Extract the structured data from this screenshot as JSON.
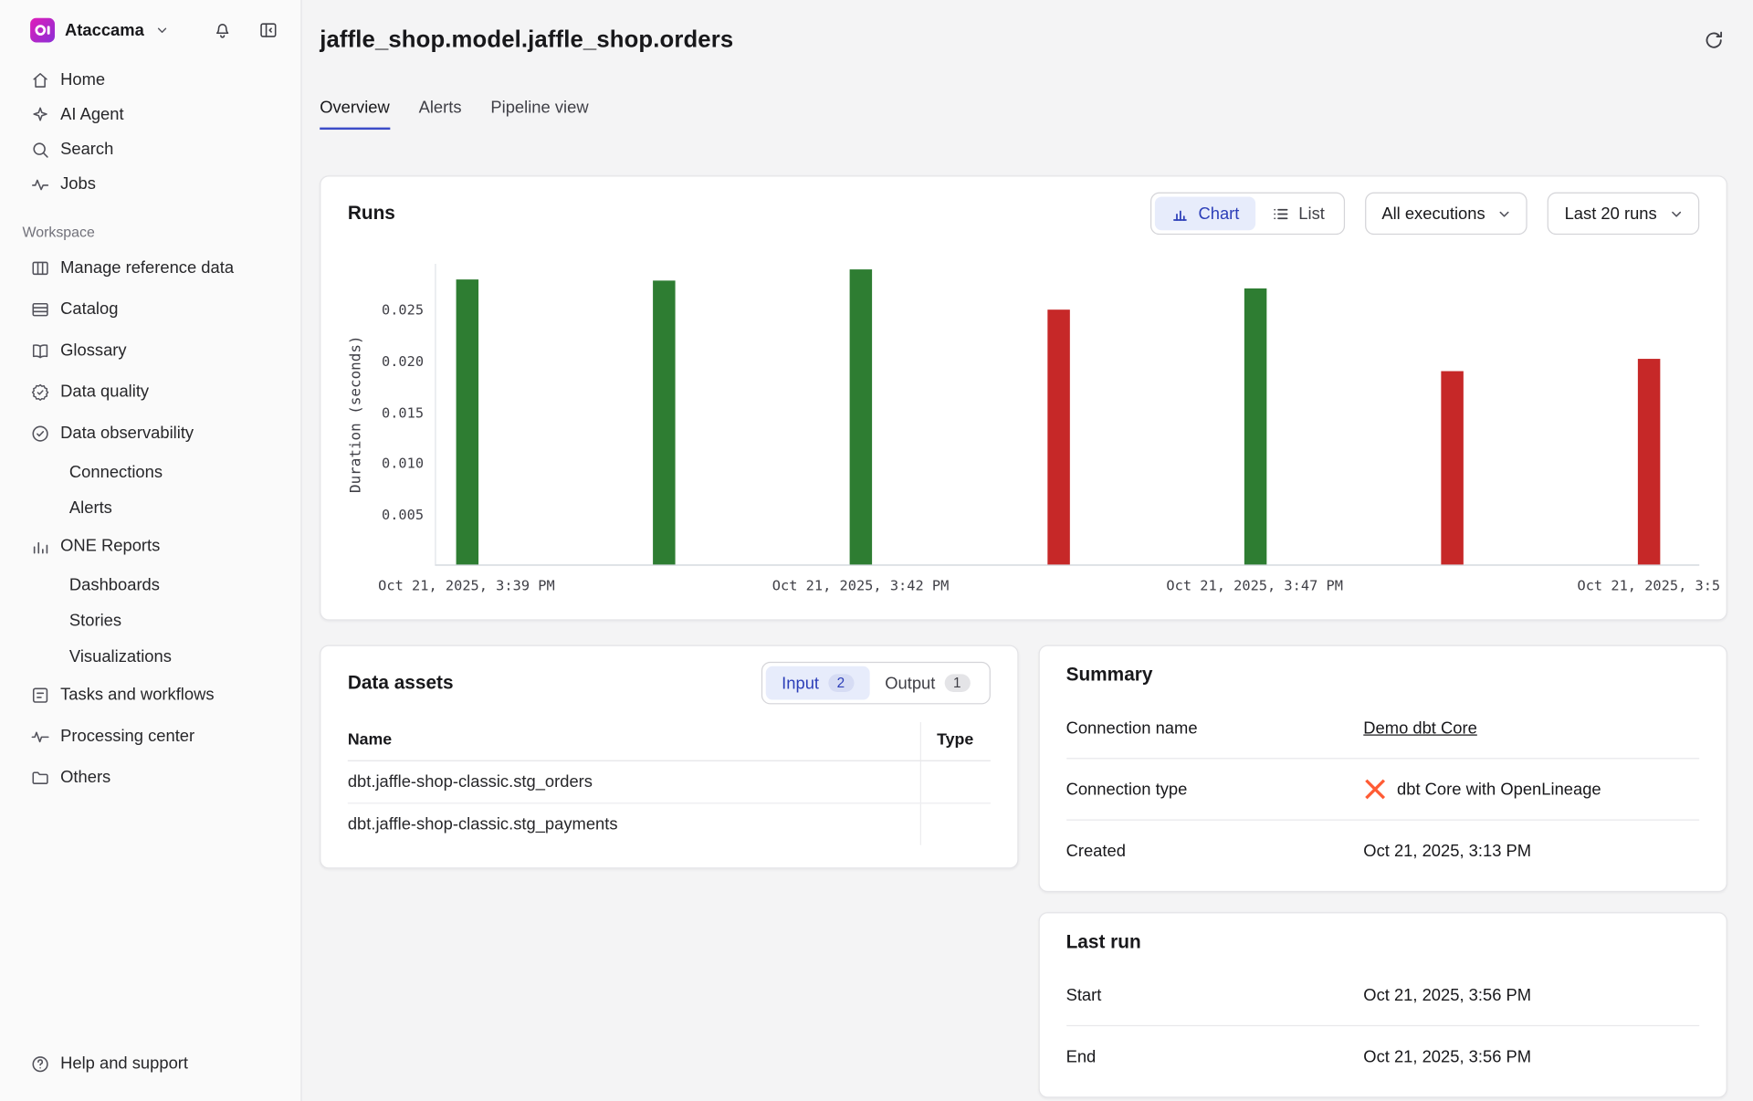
{
  "brand": {
    "name": "Ataccama"
  },
  "sidebar": {
    "top_items": [
      {
        "label": "Home"
      },
      {
        "label": "AI Agent"
      },
      {
        "label": "Search"
      },
      {
        "label": "Jobs"
      }
    ],
    "workspace_label": "Workspace",
    "workspace_items": [
      {
        "label": "Manage reference data"
      },
      {
        "label": "Catalog"
      },
      {
        "label": "Glossary"
      },
      {
        "label": "Data quality"
      },
      {
        "label": "Data observability",
        "children": [
          "Connections",
          "Alerts"
        ]
      },
      {
        "label": "ONE Reports",
        "children": [
          "Dashboards",
          "Stories",
          "Visualizations"
        ]
      },
      {
        "label": "Tasks and workflows"
      },
      {
        "label": "Processing center"
      },
      {
        "label": "Others"
      }
    ],
    "footer": {
      "help_label": "Help and support"
    }
  },
  "header": {
    "title": "jaffle_shop.model.jaffle_shop.orders"
  },
  "tabs": [
    {
      "label": "Overview",
      "active": true
    },
    {
      "label": "Alerts",
      "active": false
    },
    {
      "label": "Pipeline view",
      "active": false
    }
  ],
  "runs_card": {
    "title": "Runs",
    "view_toggle": {
      "chart_label": "Chart",
      "list_label": "List"
    },
    "filters": {
      "executions": "All executions",
      "range": "Last 20 runs"
    }
  },
  "chart_data": {
    "type": "bar",
    "ylabel": "Duration (seconds)",
    "ylim": [
      0,
      0.0295
    ],
    "yticks": [
      0.005,
      0.01,
      0.015,
      0.02,
      0.025
    ],
    "bars": [
      {
        "value": 0.028,
        "status": "success"
      },
      {
        "value": 0.0279,
        "status": "success"
      },
      {
        "value": 0.029,
        "status": "success"
      },
      {
        "value": 0.025,
        "status": "failure"
      },
      {
        "value": 0.0271,
        "status": "success"
      },
      {
        "value": 0.019,
        "status": "failure"
      },
      {
        "value": 0.0202,
        "status": "failure"
      }
    ],
    "x_tick_labels": [
      {
        "label": "Oct 21, 2025, 3:39 PM",
        "bar": 0
      },
      {
        "label": "Oct 21, 2025, 3:42 PM",
        "bar": 2
      },
      {
        "label": "Oct 21, 2025, 3:47 PM",
        "bar": 4
      },
      {
        "label": "Oct 21, 2025, 3:5",
        "bar": 6
      }
    ],
    "colors": {
      "success": "#2e7d32",
      "failure": "#c62828"
    },
    "grid": "off",
    "legend": "none"
  },
  "data_assets": {
    "title": "Data assets",
    "tabs": [
      {
        "label": "Input",
        "count": "2",
        "active": true
      },
      {
        "label": "Output",
        "count": "1",
        "active": false
      }
    ],
    "columns": [
      "Name",
      "Type"
    ],
    "rows": [
      {
        "name": "dbt.jaffle-shop-classic.stg_orders",
        "type": ""
      },
      {
        "name": "dbt.jaffle-shop-classic.stg_payments",
        "type": ""
      }
    ]
  },
  "summary": {
    "title": "Summary",
    "rows": [
      {
        "label": "Connection name",
        "value": "Demo dbt Core"
      },
      {
        "label": "Connection type",
        "value": "dbt Core with OpenLineage"
      },
      {
        "label": "Created",
        "value": "Oct 21, 2025, 3:13 PM"
      }
    ]
  },
  "last_run": {
    "title": "Last run",
    "rows": [
      {
        "label": "Start",
        "value": "Oct 21, 2025, 3:56 PM"
      },
      {
        "label": "End",
        "value": "Oct 21, 2025, 3:56 PM"
      }
    ]
  }
}
